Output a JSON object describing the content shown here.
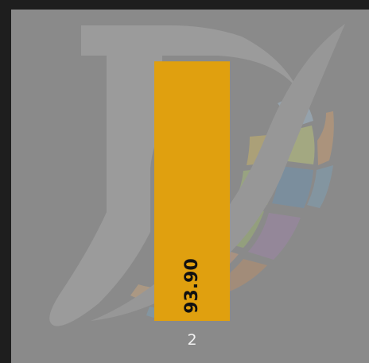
{
  "chart_data": {
    "type": "bar",
    "categories": [
      "2"
    ],
    "values": [
      93.9
    ],
    "value_labels": [
      "93.90"
    ],
    "ylim": [
      0,
      100
    ],
    "bar_color": "#E0A00F",
    "background_color": "#8A8A8A",
    "grid": false,
    "legend": "none"
  },
  "watermark": {
    "icon": "d-globe-logo-watermark"
  }
}
